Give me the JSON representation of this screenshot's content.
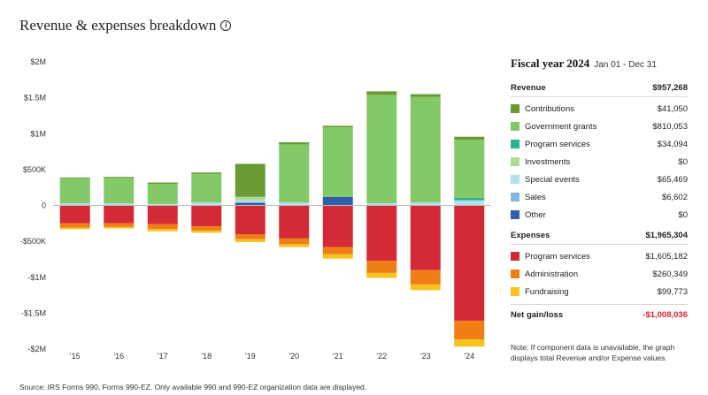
{
  "header": {
    "title": "Revenue & expenses breakdown",
    "info_icon": "ⓘ"
  },
  "panel": {
    "fiscal_year": "Fiscal year 2024",
    "date_range": "Jan 01 - Dec 31",
    "revenue": {
      "label": "Revenue",
      "total": "$957,268",
      "items": [
        {
          "label": "Contributions",
          "value": "$41,050",
          "color": "#6b9a34"
        },
        {
          "label": "Government grants",
          "value": "$810,053",
          "color": "#83c968"
        },
        {
          "label": "Program services",
          "value": "$34,094",
          "color": "#2bb38f"
        },
        {
          "label": "Investments",
          "value": "$0",
          "color": "#a9dc95"
        },
        {
          "label": "Special events",
          "value": "$65,469",
          "color": "#b3e0f0"
        },
        {
          "label": "Sales",
          "value": "$6,602",
          "color": "#7fb8dd"
        },
        {
          "label": "Other",
          "value": "$0",
          "color": "#2f5fa8"
        }
      ]
    },
    "expenses": {
      "label": "Expenses",
      "total": "$1,965,304",
      "items": [
        {
          "label": "Program services",
          "value": "$1,605,182",
          "color": "#d42a35"
        },
        {
          "label": "Administration",
          "value": "$260,349",
          "color": "#f07e17"
        },
        {
          "label": "Fundraising",
          "value": "$99,773",
          "color": "#f7c21e"
        }
      ]
    },
    "net": {
      "label": "Net gain/loss",
      "value": "-$1,008,036"
    },
    "note": "Note: If component data is unavailable, the graph displays total Revenue and/or Expense values."
  },
  "source": "Source: IRS Forms 990, Forms 990-EZ. Only available 990 and 990-EZ organization data are displayed.",
  "chart_data": {
    "type": "bar",
    "stacked": true,
    "categories": [
      "'15",
      "'16",
      "'17",
      "'18",
      "'19",
      "'20",
      "'21",
      "'22",
      "'23",
      "'24"
    ],
    "ylim": [
      -2000000,
      2000000
    ],
    "yticks": [
      2000000,
      1500000,
      1000000,
      500000,
      0,
      -500000,
      -1000000,
      -1500000,
      -2000000
    ],
    "ytick_labels": [
      "$2M",
      "$1.5M",
      "$1M",
      "$500K",
      "0",
      "-$500K",
      "-$1M",
      "-$1.5M",
      "-$2M"
    ],
    "grid": false,
    "series": [
      {
        "name": "Other",
        "color": "#2f5fa8",
        "values": [
          0,
          0,
          0,
          0,
          40000,
          0,
          120000,
          0,
          0,
          0
        ]
      },
      {
        "name": "Sales",
        "color": "#7fb8dd",
        "values": [
          0,
          0,
          0,
          0,
          0,
          0,
          0,
          0,
          10000,
          6602
        ]
      },
      {
        "name": "Special events",
        "color": "#b3e0f0",
        "values": [
          30000,
          30000,
          20000,
          40000,
          30000,
          40000,
          0,
          30000,
          30000,
          65469
        ]
      },
      {
        "name": "Program services",
        "color": "#2bb38f",
        "values": [
          0,
          0,
          0,
          0,
          0,
          0,
          0,
          0,
          0,
          34094
        ]
      },
      {
        "name": "Investments",
        "color": "#a9dc95",
        "values": [
          0,
          0,
          0,
          0,
          50000,
          0,
          0,
          0,
          0,
          0
        ]
      },
      {
        "name": "Government grants",
        "color": "#83c968",
        "values": [
          350000,
          360000,
          280000,
          400000,
          0,
          810000,
          970000,
          1510000,
          1470000,
          810053
        ]
      },
      {
        "name": "Contributions",
        "color": "#6b9a34",
        "values": [
          10000,
          10000,
          20000,
          20000,
          460000,
          30000,
          20000,
          50000,
          40000,
          41050
        ]
      },
      {
        "name": "Program services",
        "color": "#d42a35",
        "values": [
          -250000,
          -250000,
          -260000,
          -290000,
          -400000,
          -460000,
          -580000,
          -770000,
          -900000,
          -1605182
        ]
      },
      {
        "name": "Administration",
        "color": "#f07e17",
        "values": [
          -60000,
          -50000,
          -70000,
          -60000,
          -70000,
          -80000,
          -100000,
          -170000,
          -200000,
          -260349
        ]
      },
      {
        "name": "Fundraising",
        "color": "#f7c21e",
        "values": [
          -20000,
          -20000,
          -30000,
          -30000,
          -40000,
          -40000,
          -60000,
          -70000,
          -80000,
          -99773
        ]
      }
    ]
  }
}
